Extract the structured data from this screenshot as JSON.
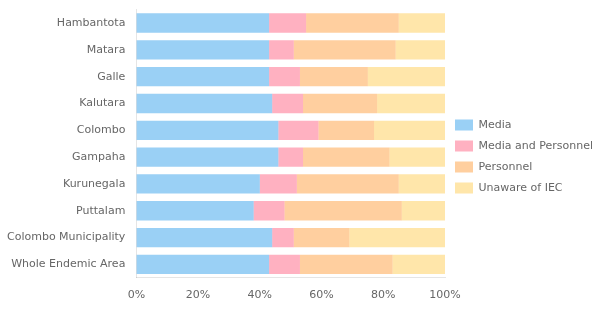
{
  "chart_data": {
    "type": "bar",
    "orientation": "horizontal",
    "stacked": true,
    "categories": [
      "Hambantota",
      "Matara",
      "Galle",
      "Kalutara",
      "Colombo",
      "Gampaha",
      "Kurunegala",
      "Puttalam",
      "Colombo Municipality",
      "Whole Endemic Area"
    ],
    "series": [
      {
        "name": "Media",
        "values": [
          43,
          43,
          43,
          44,
          46,
          46,
          40,
          38,
          44,
          43
        ]
      },
      {
        "name": "Media and\nPersonnel",
        "values": [
          12,
          8,
          10,
          10,
          13,
          8,
          12,
          10,
          7,
          10
        ]
      },
      {
        "name": "Personnel",
        "values": [
          30,
          33,
          22,
          24,
          18,
          28,
          33,
          38,
          18,
          30
        ]
      },
      {
        "name": "Unaware of IEC",
        "values": [
          15,
          16,
          25,
          22,
          23,
          18,
          15,
          14,
          31,
          17
        ]
      }
    ],
    "xlim": [
      0,
      100
    ],
    "xticks": [
      {
        "value": 0,
        "label": "0%"
      },
      {
        "value": 20,
        "label": "20%"
      },
      {
        "value": 40,
        "label": "40%"
      },
      {
        "value": 60,
        "label": "60%"
      },
      {
        "value": 80,
        "label": "80%"
      },
      {
        "value": 100,
        "label": "100%"
      }
    ],
    "grid": false,
    "legend": "right"
  }
}
